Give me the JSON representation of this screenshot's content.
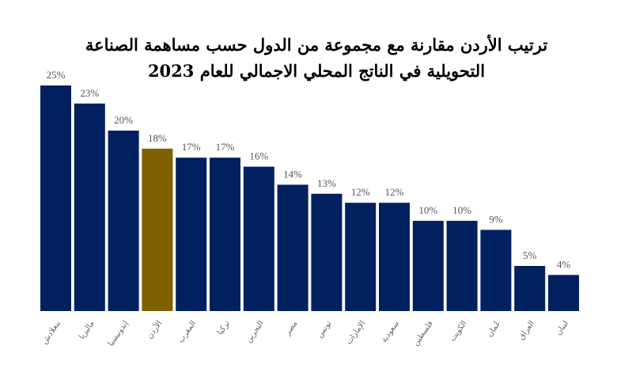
{
  "chart_data": {
    "type": "bar",
    "title": [
      "ترتيب الأردن مقارنة مع مجموعة من الدول حسب مساهمة الصناعة",
      "التحويلية في الناتج المحلي الاجمالي للعام 2023"
    ],
    "xlabel": "",
    "ylabel": "",
    "ylim": [
      0,
      25
    ],
    "grid": false,
    "legend": "none",
    "categories": [
      "بنغلادش",
      "ماليزيا",
      "إندونيسيا",
      "الأردن",
      "المغرب",
      "تركيا",
      "البحرين",
      "مصر",
      "تونس",
      "الإمارات",
      "سعودية",
      "فلسطين",
      "الكويت",
      "عُمان",
      "العراق",
      "لبنان"
    ],
    "values": [
      25,
      23,
      20,
      18,
      17,
      17,
      16,
      14,
      13,
      12,
      12,
      10,
      10,
      9,
      5,
      4
    ],
    "data_labels": [
      "25%",
      "23%",
      "20%",
      "18%",
      "17%",
      "17%",
      "16%",
      "14%",
      "13%",
      "12%",
      "12%",
      "10%",
      "10%",
      "9%",
      "5%",
      "4%"
    ],
    "highlight_category": "الأردن",
    "colors": {
      "bar": "#002060",
      "highlight": "#7F6000"
    }
  }
}
